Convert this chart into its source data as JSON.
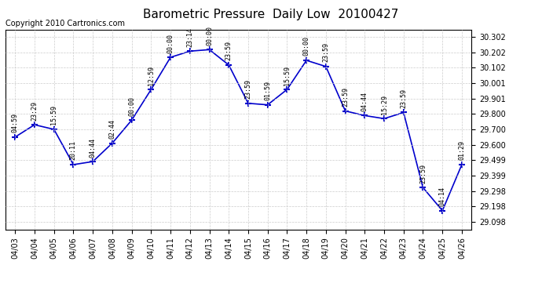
{
  "title": "Barometric Pressure  Daily Low  20100427",
  "copyright": "Copyright 2010 Cartronics.com",
  "x_labels": [
    "04/03",
    "04/04",
    "04/05",
    "04/06",
    "04/07",
    "04/08",
    "04/09",
    "04/10",
    "04/11",
    "04/12",
    "04/13",
    "04/14",
    "04/15",
    "04/16",
    "04/17",
    "04/18",
    "04/19",
    "04/20",
    "04/21",
    "04/22",
    "04/23",
    "04/24",
    "04/25",
    "04/26"
  ],
  "y_ticks": [
    29.098,
    29.198,
    29.298,
    29.399,
    29.499,
    29.6,
    29.7,
    29.8,
    29.901,
    30.001,
    30.102,
    30.202,
    30.302
  ],
  "data_points": [
    {
      "date": "04/03",
      "time": "04:59",
      "value": 29.65
    },
    {
      "date": "04/04",
      "time": "23:29",
      "value": 29.73
    },
    {
      "date": "04/05",
      "time": "15:59",
      "value": 29.7
    },
    {
      "date": "04/06",
      "time": "20:11",
      "value": 29.47
    },
    {
      "date": "04/07",
      "time": "04:44",
      "value": 29.49
    },
    {
      "date": "04/08",
      "time": "02:44",
      "value": 29.61
    },
    {
      "date": "04/09",
      "time": "00:00",
      "value": 29.76
    },
    {
      "date": "04/10",
      "time": "12:59",
      "value": 29.96
    },
    {
      "date": "04/11",
      "time": "00:00",
      "value": 30.17
    },
    {
      "date": "04/12",
      "time": "23:14",
      "value": 30.21
    },
    {
      "date": "04/13",
      "time": "00:00",
      "value": 30.22
    },
    {
      "date": "04/14",
      "time": "23:59",
      "value": 30.12
    },
    {
      "date": "04/15",
      "time": "23:59",
      "value": 29.87
    },
    {
      "date": "04/16",
      "time": "01:59",
      "value": 29.86
    },
    {
      "date": "04/17",
      "time": "15:59",
      "value": 29.96
    },
    {
      "date": "04/18",
      "time": "00:00",
      "value": 30.15
    },
    {
      "date": "04/19",
      "time": "23:59",
      "value": 30.11
    },
    {
      "date": "04/20",
      "time": "23:59",
      "value": 29.82
    },
    {
      "date": "04/21",
      "time": "04:44",
      "value": 29.79
    },
    {
      "date": "04/22",
      "time": "15:29",
      "value": 29.77
    },
    {
      "date": "04/23",
      "time": "23:59",
      "value": 29.81
    },
    {
      "date": "04/24",
      "time": "23:59",
      "value": 29.32
    },
    {
      "date": "04/25",
      "time": "04:14",
      "value": 29.17
    },
    {
      "date": "04/26",
      "time": "01:29",
      "value": 29.47
    }
  ],
  "line_color": "#0000cc",
  "marker_color": "#0000cc",
  "bg_color": "#ffffff",
  "grid_color": "#cccccc",
  "ylim_min": 29.048,
  "ylim_max": 30.352,
  "title_fontsize": 11,
  "copyright_fontsize": 7,
  "tick_fontsize": 7,
  "annot_fontsize": 6
}
